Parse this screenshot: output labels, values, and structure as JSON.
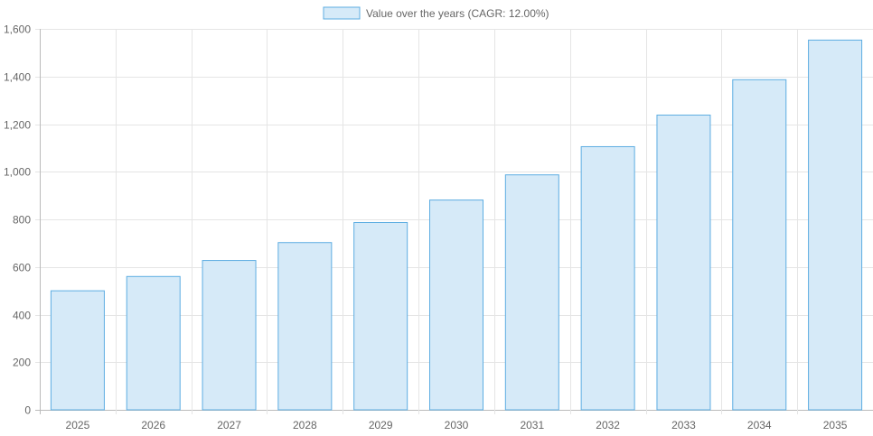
{
  "chart_data": {
    "type": "bar",
    "legend": {
      "label": "Value over the years (CAGR: 12.00%)",
      "position": "top"
    },
    "categories": [
      "2025",
      "2026",
      "2027",
      "2028",
      "2029",
      "2030",
      "2031",
      "2032",
      "2033",
      "2034",
      "2035"
    ],
    "series": [
      {
        "name": "Value over the years (CAGR: 12.00%)",
        "values": [
          500,
          560,
          627.2,
          702.46,
          786.76,
          881.17,
          986.91,
          1105.34,
          1237.98,
          1386.54,
          1552.92
        ]
      }
    ],
    "ylim": [
      0,
      1600
    ],
    "yticks": [
      "0",
      "200",
      "400",
      "600",
      "800",
      "1,000",
      "1,200",
      "1,400",
      "1,600"
    ],
    "grid": true,
    "colors": {
      "fill": "#d6eaf8",
      "border": "#5dade2",
      "grid": "#e5e5e5"
    }
  }
}
